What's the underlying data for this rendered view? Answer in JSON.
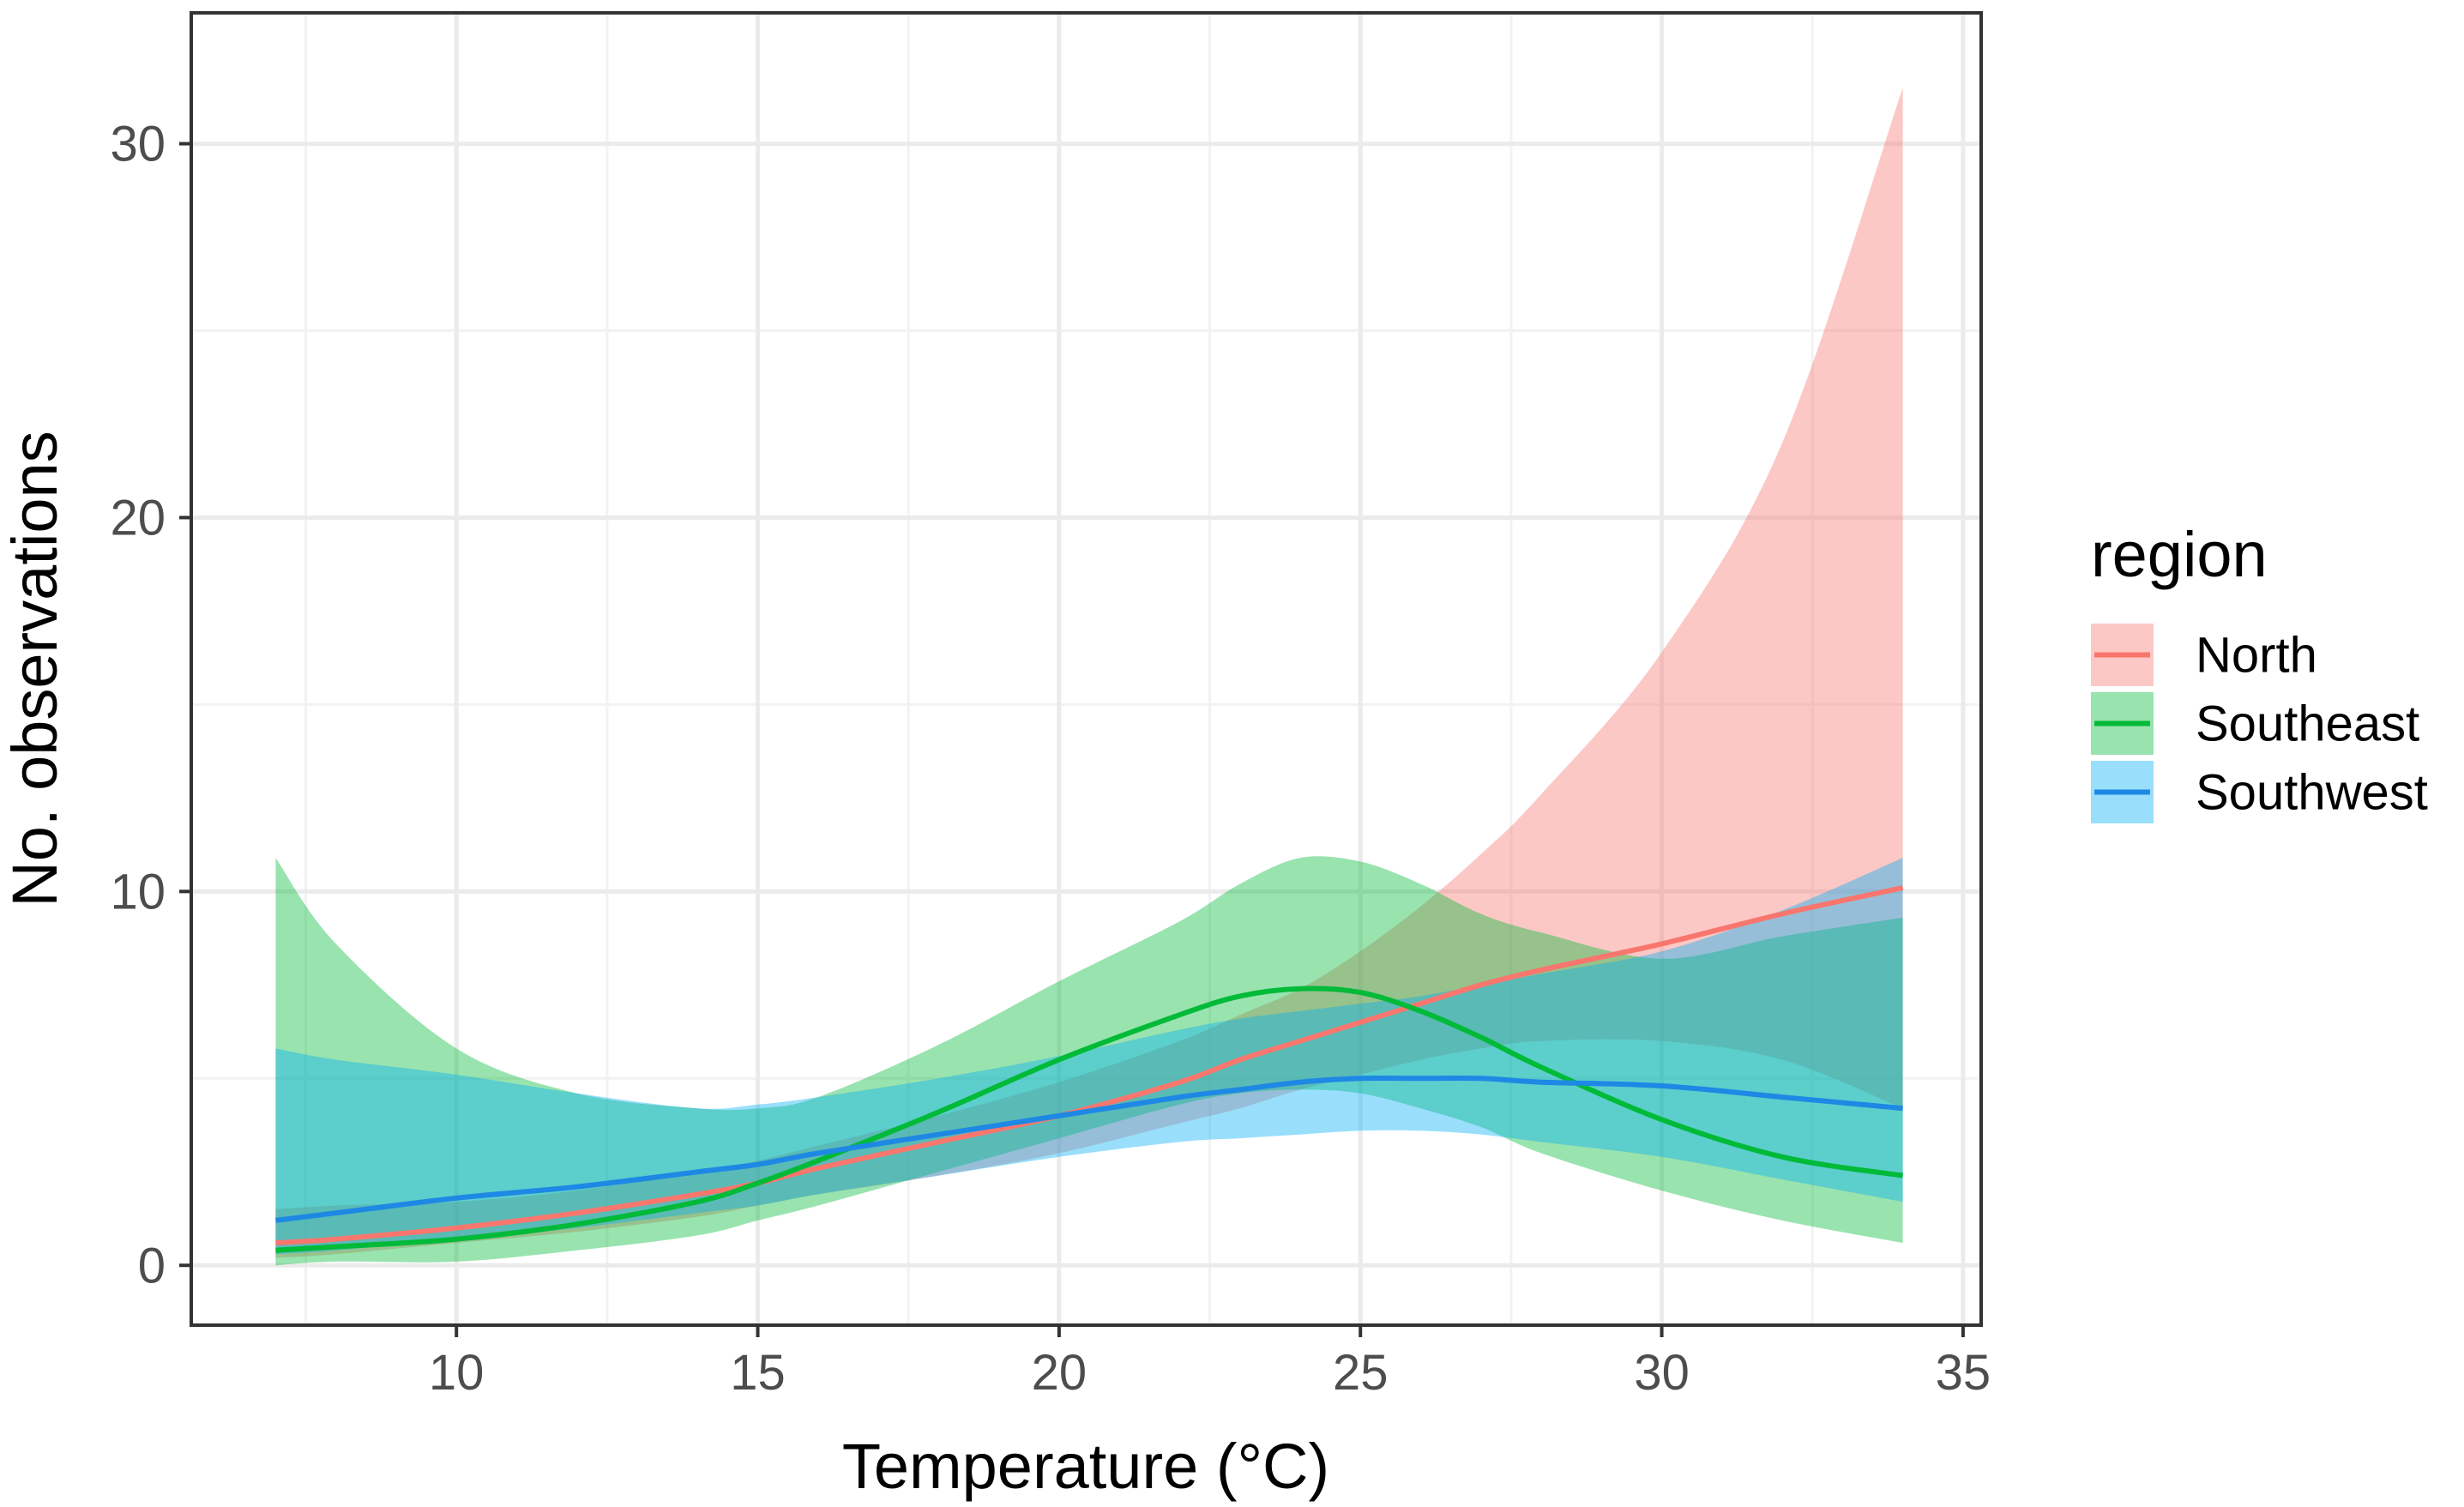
{
  "chart_data": {
    "type": "line",
    "title": "",
    "xlabel": "Temperature (°C)",
    "ylabel": "No. observations",
    "xlim": [
      5.6,
      35.3
    ],
    "ylim": [
      -1.6,
      33.5
    ],
    "x_ticks": [
      10,
      15,
      20,
      25,
      30,
      35
    ],
    "y_ticks": [
      0,
      10,
      20,
      30
    ],
    "x_tick_labels": [
      "10",
      "15",
      "20",
      "25",
      "30",
      "35"
    ],
    "y_tick_labels": [
      "0",
      "10",
      "20",
      "30"
    ],
    "grid": true,
    "legend": {
      "title": "region",
      "position": "right"
    },
    "x": [
      7,
      8,
      10,
      12,
      14,
      15,
      16,
      18,
      20,
      22,
      23,
      24,
      25,
      26,
      27,
      28,
      30,
      32,
      34
    ],
    "series": [
      {
        "name": "North",
        "color": "#F8766D",
        "values": [
          0.6,
          0.7,
          1.0,
          1.4,
          1.9,
          2.2,
          2.6,
          3.3,
          4.0,
          4.9,
          5.5,
          6.0,
          6.5,
          7.0,
          7.5,
          7.9,
          8.6,
          9.4,
          10.1
        ],
        "lower": [
          0.2,
          0.3,
          0.6,
          0.9,
          1.3,
          1.6,
          1.9,
          2.4,
          3.0,
          3.8,
          4.2,
          4.7,
          5.1,
          5.5,
          5.8,
          6.0,
          6.0,
          5.5,
          4.2
        ],
        "upper": [
          1.5,
          1.6,
          1.7,
          2.0,
          2.5,
          2.8,
          3.2,
          4.0,
          4.9,
          6.0,
          6.7,
          7.4,
          8.4,
          9.6,
          11.0,
          12.6,
          16.4,
          22.0,
          31.5
        ]
      },
      {
        "name": "Southeast",
        "color": "#00BA38",
        "values": [
          0.4,
          0.5,
          0.7,
          1.1,
          1.7,
          2.2,
          2.8,
          4.1,
          5.5,
          6.7,
          7.2,
          7.4,
          7.3,
          6.8,
          6.1,
          5.3,
          3.9,
          2.9,
          2.4
        ],
        "lower": [
          0.0,
          0.1,
          0.1,
          0.4,
          0.8,
          1.2,
          1.6,
          2.5,
          3.4,
          4.3,
          4.6,
          4.7,
          4.6,
          4.2,
          3.7,
          3.0,
          2.0,
          1.2,
          0.6
        ],
        "upper": [
          10.9,
          8.6,
          5.8,
          4.6,
          4.2,
          4.2,
          4.5,
          5.9,
          7.6,
          9.2,
          10.2,
          10.9,
          10.8,
          10.2,
          9.4,
          8.9,
          8.2,
          8.8,
          9.3
        ]
      },
      {
        "name": "Southwest",
        "color": "#619CFF",
        "line_color": "#1E88E5",
        "values": [
          1.2,
          1.4,
          1.8,
          2.1,
          2.5,
          2.7,
          3.0,
          3.5,
          4.0,
          4.5,
          4.7,
          4.9,
          5.0,
          5.0,
          5.0,
          4.9,
          4.8,
          4.5,
          4.2
        ],
        "lower": [
          0.3,
          0.4,
          0.7,
          1.0,
          1.4,
          1.6,
          1.9,
          2.4,
          2.9,
          3.3,
          3.4,
          3.5,
          3.6,
          3.6,
          3.5,
          3.3,
          2.9,
          2.3,
          1.7
        ],
        "upper": [
          5.8,
          5.5,
          5.1,
          4.6,
          4.2,
          4.3,
          4.5,
          5.0,
          5.6,
          6.3,
          6.6,
          6.8,
          7.0,
          7.2,
          7.5,
          7.8,
          8.4,
          9.5,
          10.9
        ]
      }
    ]
  }
}
